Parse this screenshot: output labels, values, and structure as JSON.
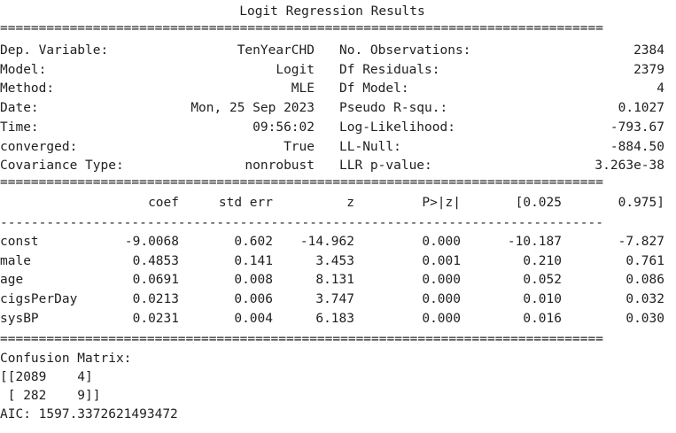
{
  "title": "Logit Regression Results",
  "rules": {
    "double": "==============================================================================",
    "dashed": "------------------------------------------------------------------------------"
  },
  "summary_rows": [
    {
      "label": "Dep. Variable:",
      "value": "TenYearCHD",
      "label2": "No. Observations:",
      "value2": "2384"
    },
    {
      "label": "Model:",
      "value": "Logit",
      "label2": "Df Residuals:",
      "value2": "2379"
    },
    {
      "label": "Method:",
      "value": "MLE",
      "label2": "Df Model:",
      "value2": "4"
    },
    {
      "label": "Date:",
      "value": "Mon, 25 Sep 2023",
      "label2": "Pseudo R-squ.:",
      "value2": "0.1027"
    },
    {
      "label": "Time:",
      "value": "09:56:02",
      "label2": "Log-Likelihood:",
      "value2": "-793.67"
    },
    {
      "label": "converged:",
      "value": "True",
      "label2": "LL-Null:",
      "value2": "-884.50"
    },
    {
      "label": "Covariance Type:",
      "value": "nonrobust",
      "label2": "LLR p-value:",
      "value2": "3.263e-38"
    }
  ],
  "coef_table": {
    "headers": [
      "coef",
      "std err",
      "z",
      "P>|z|",
      "[0.025",
      "0.975]"
    ],
    "rows": [
      {
        "name": "const",
        "values": [
          "-9.0068",
          "0.602",
          "-14.962",
          "0.000",
          "-10.187",
          "-7.827"
        ]
      },
      {
        "name": "male",
        "values": [
          "0.4853",
          "0.141",
          "3.453",
          "0.001",
          "0.210",
          "0.761"
        ]
      },
      {
        "name": "age",
        "values": [
          "0.0691",
          "0.008",
          "8.131",
          "0.000",
          "0.052",
          "0.086"
        ]
      },
      {
        "name": "cigsPerDay",
        "values": [
          "0.0213",
          "0.006",
          "3.747",
          "0.000",
          "0.010",
          "0.032"
        ]
      },
      {
        "name": "sysBP",
        "values": [
          "0.0231",
          "0.004",
          "6.183",
          "0.000",
          "0.016",
          "0.030"
        ]
      }
    ]
  },
  "confusion": {
    "label": "Confusion Matrix:",
    "line1": "[[2089    4]",
    "line2": " [ 282    9]]"
  },
  "aic": "AIC: 1597.3372621493472"
}
